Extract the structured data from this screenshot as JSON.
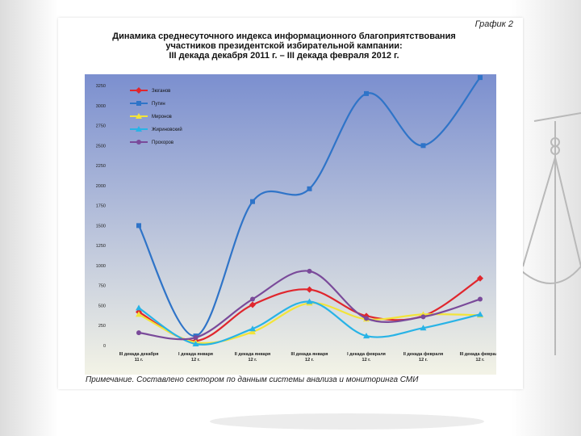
{
  "slide": {
    "graph_tag": "График 2",
    "title_lines": [
      "Динамика среднесуточного индекса информационного благоприятствования",
      "участников президентской избирательной кампании:",
      "III декада декабря 2011 г. – III декада февраля 2012 г."
    ],
    "note": "Примечание. Составлено сектором по данным системы анализа и мониторинга СМИ"
  },
  "colors": {
    "plot_top": "#7b8fcf",
    "plot_bottom": "#f3f3e6",
    "Зюганов": "#e0262d",
    "Путин": "#2f74c8",
    "Миронов": "#f2e43a",
    "Жириновский": "#28b3e6",
    "Прохоров": "#7a4a9a"
  },
  "chart_data": {
    "type": "line",
    "title": "Динамика среднесуточного индекса информационного благоприятствования участников президентской избирательной кампании: III декада декабря 2011 г. – III декада февраля 2012 г.",
    "categories": [
      [
        "III декада декабря",
        "11 г."
      ],
      [
        "I декада января",
        "12 г."
      ],
      [
        "II декада января",
        "12 г."
      ],
      [
        "III декада января",
        "12 г."
      ],
      [
        "I декада февраля",
        "12 г."
      ],
      [
        "II декада февраля",
        "12 г."
      ],
      [
        "III декада февраля",
        "12 г."
      ]
    ],
    "ylim": [
      0,
      3250
    ],
    "yticks": [
      0,
      250,
      500,
      750,
      1000,
      1250,
      1500,
      1750,
      2000,
      2250,
      2500,
      2750,
      3000,
      3250
    ],
    "legend_position": "top-left",
    "grid": false,
    "series": [
      {
        "name": "Зюганов",
        "marker": "diamond",
        "values": [
          420,
          60,
          510,
          700,
          370,
          370,
          840
        ]
      },
      {
        "name": "Путин",
        "marker": "square",
        "values": [
          1500,
          120,
          1800,
          1960,
          3150,
          2500,
          3350
        ]
      },
      {
        "name": "Миронов",
        "marker": "triangle",
        "values": [
          390,
          40,
          170,
          530,
          330,
          390,
          380
        ]
      },
      {
        "name": "Жириновский",
        "marker": "triangle",
        "values": [
          470,
          20,
          210,
          550,
          120,
          220,
          390
        ]
      },
      {
        "name": "Прохоров",
        "marker": "star",
        "values": [
          160,
          100,
          580,
          930,
          340,
          360,
          580
        ]
      }
    ]
  }
}
